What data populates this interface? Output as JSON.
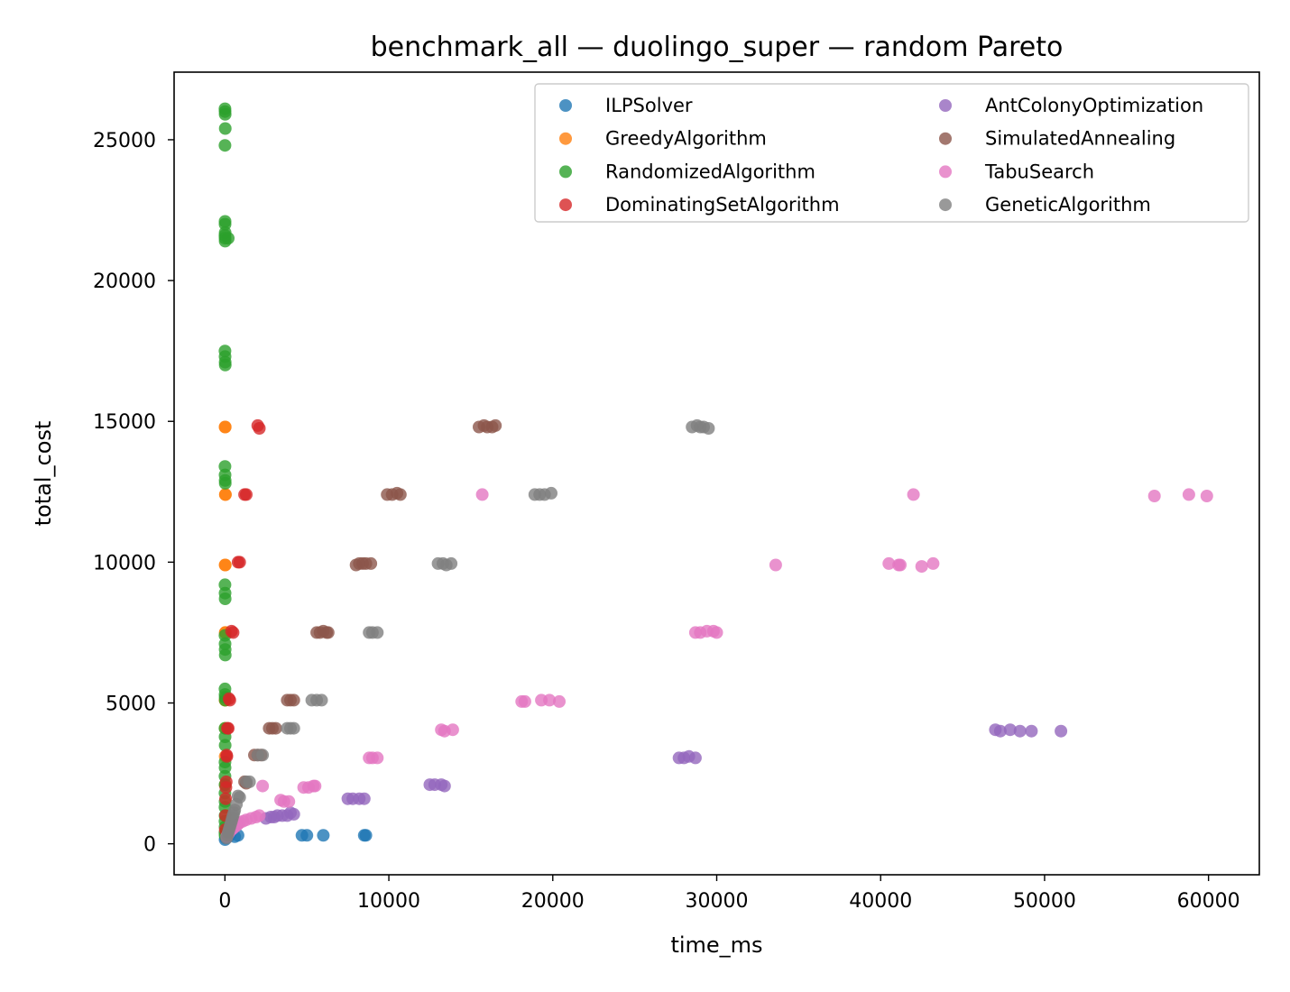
{
  "chart_data": {
    "type": "scatter",
    "title": "benchmark_all — duolingo_super — random Pareto",
    "xlabel": "time_ms",
    "ylabel": "total_cost",
    "xlim": [
      -3100,
      63100
    ],
    "ylim": [
      -1100,
      27400
    ],
    "xticks": [
      0,
      10000,
      20000,
      30000,
      40000,
      50000,
      60000
    ],
    "yticks": [
      0,
      5000,
      10000,
      15000,
      20000,
      25000
    ],
    "grid": false,
    "legend_position": "top-right",
    "series": [
      {
        "name": "ILPSolver",
        "color": "#1f77b4",
        "x": [
          10,
          50,
          150,
          300,
          600,
          800,
          4700,
          5000,
          6000,
          8500,
          8600
        ],
        "y": [
          150,
          200,
          250,
          300,
          250,
          300,
          300,
          300,
          300,
          300,
          300
        ]
      },
      {
        "name": "GreedyAlgorithm",
        "color": "#ff7f0e",
        "x": [
          10,
          20,
          25,
          30,
          15,
          18,
          22,
          28,
          12,
          16,
          20,
          14,
          18
        ],
        "y": [
          14800,
          14800,
          12400,
          12400,
          9900,
          9900,
          7500,
          7500,
          5100,
          5100,
          4100,
          3100,
          2100
        ]
      },
      {
        "name": "RandomizedAlgorithm",
        "color": "#2ca02c",
        "x": [
          5,
          10,
          15,
          20,
          5,
          10,
          8,
          12,
          5,
          10,
          15,
          200,
          5,
          10,
          15,
          20,
          5,
          10,
          15,
          20,
          5,
          10,
          15,
          5,
          10,
          15,
          20,
          5,
          10,
          15,
          20,
          5,
          10,
          15,
          5,
          10,
          5,
          10,
          5,
          10,
          5,
          10,
          5,
          10,
          5,
          10
        ],
        "y": [
          26100,
          26000,
          25900,
          25400,
          24800,
          22100,
          22000,
          21700,
          21600,
          21500,
          21400,
          21500,
          17500,
          17300,
          17100,
          17000,
          13400,
          13100,
          12900,
          12800,
          9200,
          8900,
          8700,
          7400,
          7100,
          6900,
          6700,
          5500,
          5300,
          5200,
          5100,
          4100,
          3800,
          3500,
          2900,
          2700,
          2400,
          2100,
          1800,
          1500,
          1300,
          1000,
          800,
          600,
          400,
          300
        ]
      },
      {
        "name": "DominatingSetAlgorithm",
        "color": "#d62728",
        "x": [
          2000,
          2100,
          1200,
          1300,
          800,
          900,
          400,
          500,
          250,
          300,
          150,
          200,
          100,
          120,
          80,
          60,
          40,
          30,
          20
        ],
        "y": [
          14850,
          14750,
          12400,
          12400,
          10000,
          10000,
          7550,
          7500,
          5150,
          5100,
          4100,
          4100,
          3150,
          3100,
          2200,
          2000,
          1600,
          1000,
          500
        ]
      },
      {
        "name": "AntColonyOptimization",
        "color": "#9467bd",
        "x": [
          47000,
          47300,
          47900,
          48500,
          49200,
          51000,
          27700,
          28000,
          28300,
          28700,
          12500,
          12800,
          13200,
          13400,
          7500,
          7800,
          8200,
          8500,
          4000,
          4200,
          3500,
          3800,
          2800,
          3000,
          3200,
          2500
        ],
        "y": [
          4050,
          4000,
          4050,
          4000,
          4000,
          4000,
          3050,
          3050,
          3100,
          3050,
          2100,
          2100,
          2100,
          2050,
          1600,
          1600,
          1600,
          1600,
          1100,
          1050,
          1000,
          1000,
          950,
          950,
          1000,
          900
        ]
      },
      {
        "name": "SimulatedAnnealing",
        "color": "#8c564b",
        "x": [
          15500,
          15800,
          16000,
          16300,
          16500,
          9900,
          10200,
          10500,
          10700,
          8000,
          8200,
          8400,
          8600,
          8900,
          5600,
          5800,
          6000,
          6200,
          6300,
          3800,
          4000,
          4200,
          2700,
          2900,
          3100,
          1800,
          2000,
          2200,
          1200,
          1300
        ],
        "y": [
          14800,
          14850,
          14800,
          14800,
          14850,
          12400,
          12400,
          12450,
          12400,
          9900,
          9950,
          9950,
          9950,
          9950,
          7500,
          7500,
          7550,
          7500,
          7500,
          5100,
          5100,
          5100,
          4100,
          4100,
          4100,
          3150,
          3150,
          3150,
          2200,
          2150
        ]
      },
      {
        "name": "TabuSearch",
        "color": "#e377c2",
        "x": [
          56700,
          58800,
          59900,
          42000,
          15700,
          33600,
          40500,
          41100,
          41200,
          42500,
          43200,
          28700,
          29000,
          29400,
          29800,
          30000,
          18100,
          18300,
          19300,
          19800,
          20400,
          13200,
          13400,
          13900,
          8800,
          9000,
          9300,
          4800,
          5100,
          5400,
          5500,
          3400,
          3600,
          3900,
          2300,
          2100,
          1900,
          1600,
          1300,
          1100,
          900,
          800,
          700,
          600,
          500,
          400,
          300,
          250,
          200,
          150,
          100
        ],
        "y": [
          12350,
          12400,
          12350,
          12400,
          12400,
          9900,
          9950,
          9900,
          9900,
          9850,
          9950,
          7500,
          7500,
          7550,
          7550,
          7500,
          5050,
          5050,
          5100,
          5100,
          5050,
          4050,
          4000,
          4050,
          3050,
          3050,
          3050,
          2000,
          2000,
          2050,
          2050,
          1550,
          1500,
          1500,
          2050,
          1000,
          950,
          900,
          850,
          800,
          750,
          700,
          650,
          600,
          550,
          500,
          450,
          400,
          350,
          300,
          250
        ]
      },
      {
        "name": "GeneticAlgorithm",
        "color": "#7f7f7f",
        "x": [
          28500,
          28800,
          29000,
          29200,
          29500,
          18900,
          19200,
          19500,
          19900,
          13000,
          13300,
          13500,
          13800,
          8800,
          9000,
          9300,
          5300,
          5600,
          5900,
          3800,
          4000,
          4200,
          2000,
          2300,
          1300,
          1500,
          800,
          900,
          700,
          600,
          550,
          500,
          450,
          400,
          350,
          300,
          250,
          200,
          150,
          100
        ],
        "y": [
          14800,
          14850,
          14800,
          14800,
          14750,
          12400,
          12400,
          12400,
          12450,
          9950,
          9950,
          9900,
          9950,
          7500,
          7500,
          7500,
          5100,
          5100,
          5100,
          4100,
          4100,
          4100,
          3150,
          3150,
          2200,
          2200,
          1700,
          1650,
          1400,
          1200,
          1100,
          1000,
          900,
          800,
          700,
          600,
          500,
          400,
          300,
          200
        ]
      }
    ]
  }
}
